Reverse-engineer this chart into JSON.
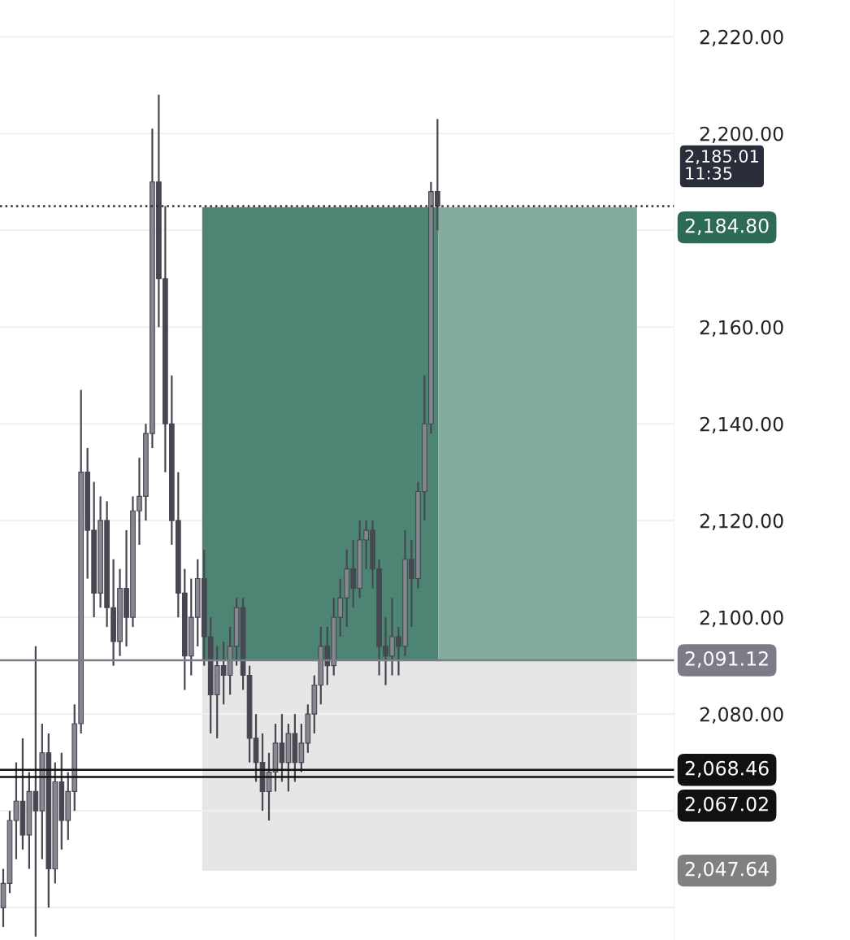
{
  "chart_data": {
    "type": "candlestick",
    "categories": [
      null,
      null,
      null,
      null,
      null,
      null,
      null,
      null,
      null,
      null,
      null,
      null,
      null,
      null,
      null,
      null,
      null,
      null,
      null,
      null,
      null,
      null,
      null,
      null,
      null,
      null,
      null,
      null,
      null,
      null,
      null,
      null,
      null,
      null,
      null,
      null,
      null,
      null,
      null,
      null,
      null,
      null,
      null,
      null,
      null,
      null,
      null,
      null,
      null,
      null,
      null,
      null,
      null,
      null,
      null,
      null,
      null,
      null,
      null,
      null,
      null,
      null,
      null,
      null,
      null,
      null,
      null,
      null,
      null,
      null,
      null,
      null,
      null,
      null,
      null,
      null,
      null,
      null,
      null,
      null,
      null,
      null,
      null,
      null,
      null,
      null,
      null,
      null,
      null,
      null,
      null,
      null,
      null,
      null,
      null,
      null,
      null,
      null,
      null,
      null,
      null,
      null,
      null,
      null
    ],
    "series": [
      {
        "color": "#474752",
        "ohlc": [
          [
            2040,
            2048,
            2036,
            2045
          ],
          [
            2045,
            2060,
            2043,
            2058
          ],
          [
            2058,
            2070,
            2050,
            2062
          ],
          [
            2062,
            2075,
            2052,
            2055
          ],
          [
            2055,
            2068,
            2048,
            2064
          ],
          [
            2064,
            2094,
            2034,
            2060
          ],
          [
            2060,
            2078,
            2050,
            2072
          ],
          [
            2072,
            2076,
            2040,
            2048
          ],
          [
            2048,
            2070,
            2045,
            2066
          ],
          [
            2066,
            2072,
            2052,
            2058
          ],
          [
            2058,
            2068,
            2054,
            2064
          ],
          [
            2064,
            2082,
            2060,
            2078
          ],
          [
            2078,
            2147,
            2076,
            2130
          ],
          [
            2130,
            2135,
            2108,
            2118
          ],
          [
            2118,
            2128,
            2100,
            2105
          ],
          [
            2105,
            2125,
            2102,
            2120
          ],
          [
            2120,
            2124,
            2098,
            2102
          ],
          [
            2102,
            2112,
            2090,
            2095
          ],
          [
            2095,
            2110,
            2092,
            2106
          ],
          [
            2106,
            2118,
            2094,
            2100
          ],
          [
            2100,
            2125,
            2098,
            2122
          ],
          [
            2122,
            2133,
            2115,
            2125
          ],
          [
            2125,
            2140,
            2120,
            2138
          ],
          [
            2138,
            2201,
            2135,
            2190
          ],
          [
            2190,
            2208,
            2160,
            2170
          ],
          [
            2170,
            2185,
            2130,
            2140
          ],
          [
            2140,
            2150,
            2115,
            2120
          ],
          [
            2120,
            2130,
            2100,
            2105
          ],
          [
            2105,
            2110,
            2085,
            2092
          ],
          [
            2092,
            2108,
            2088,
            2100
          ],
          [
            2100,
            2112,
            2094,
            2108
          ],
          [
            2108,
            2114,
            2090,
            2096
          ],
          [
            2096,
            2100,
            2076,
            2084
          ],
          [
            2084,
            2094,
            2075,
            2090
          ],
          [
            2090,
            2095,
            2082,
            2088
          ],
          [
            2088,
            2098,
            2084,
            2094
          ],
          [
            2094,
            2104,
            2090,
            2102
          ],
          [
            2102,
            2104,
            2085,
            2088
          ],
          [
            2088,
            2090,
            2070,
            2075
          ],
          [
            2075,
            2080,
            2066,
            2070
          ],
          [
            2070,
            2076,
            2060,
            2064
          ],
          [
            2064,
            2072,
            2058,
            2068
          ],
          [
            2068,
            2078,
            2064,
            2074
          ],
          [
            2074,
            2080,
            2066,
            2070
          ],
          [
            2070,
            2078,
            2064,
            2076
          ],
          [
            2076,
            2080,
            2066,
            2070
          ],
          [
            2070,
            2078,
            2068,
            2074
          ],
          [
            2074,
            2082,
            2072,
            2080
          ],
          [
            2080,
            2088,
            2076,
            2086
          ],
          [
            2086,
            2098,
            2082,
            2094
          ],
          [
            2094,
            2098,
            2086,
            2090
          ],
          [
            2090,
            2104,
            2088,
            2100
          ],
          [
            2100,
            2108,
            2096,
            2104
          ],
          [
            2104,
            2114,
            2098,
            2110
          ],
          [
            2110,
            2116,
            2102,
            2106
          ],
          [
            2106,
            2120,
            2104,
            2116
          ],
          [
            2116,
            2120,
            2110,
            2118
          ],
          [
            2118,
            2120,
            2106,
            2110
          ],
          [
            2110,
            2112,
            2088,
            2094
          ],
          [
            2094,
            2100,
            2086,
            2092
          ],
          [
            2092,
            2104,
            2088,
            2096
          ],
          [
            2096,
            2098,
            2088,
            2094
          ],
          [
            2094,
            2118,
            2092,
            2112
          ],
          [
            2112,
            2116,
            2098,
            2108
          ],
          [
            2108,
            2128,
            2106,
            2126
          ],
          [
            2126,
            2150,
            2120,
            2140
          ],
          [
            2140,
            2190,
            2138,
            2188
          ],
          [
            2188,
            2203,
            2180,
            2185.01
          ],
          null,
          null,
          null,
          null,
          null,
          null,
          null,
          null,
          null,
          null,
          null,
          null,
          null,
          null,
          null,
          null,
          null,
          null,
          null,
          null,
          null,
          null,
          null,
          null,
          null,
          null,
          null,
          null,
          null,
          null,
          null,
          null,
          null,
          null,
          null,
          null
        ]
      }
    ],
    "ylim": [
      2033.3,
      2227.6
    ],
    "yticks": [
      {
        "value": 2040,
        "label": null
      },
      {
        "value": 2060,
        "label": null
      },
      {
        "value": 2080,
        "label": "2,080.00"
      },
      {
        "value": 2100,
        "label": "2,100.00"
      },
      {
        "value": 2120,
        "label": "2,120.00"
      },
      {
        "value": 2140,
        "label": "2,140.00"
      },
      {
        "value": 2160,
        "label": "2,160.00"
      },
      {
        "value": 2180,
        "label": null
      },
      {
        "value": 2200,
        "label": "2,200.00"
      },
      {
        "value": 2220,
        "label": "2,220.00"
      }
    ],
    "grid": "y",
    "tick_labels": "y",
    "bands": [
      {
        "axis": "y",
        "from": 2091.12,
        "to": 2184.8,
        "color": "#4e8474"
      },
      {
        "axis": "y",
        "from": 2091.12,
        "to": 2184.8,
        "label": "2,184.80",
        "color": "#85ab9f"
      },
      {
        "axis": "y",
        "from": 2047.64,
        "to": 2091.12,
        "label": "2,047.64",
        "color": "#e6e6e6"
      }
    ],
    "ref_lines": [
      {
        "axis": "y",
        "value": 2185.01,
        "label": "2,185.01\n11:35",
        "color": "#2a2d3a",
        "line_style": "dotted"
      },
      {
        "axis": "y",
        "value": 2091.12,
        "label": "2,091.12",
        "color": "#7b7c88",
        "line_style": "solid"
      },
      {
        "axis": "y",
        "value": 2068.46,
        "label": "2,068.46",
        "color": "#111111",
        "line_style": "solid"
      },
      {
        "axis": "y",
        "value": 2067.02,
        "label": "2,067.02",
        "color": "#111111",
        "line_style": "solid"
      }
    ]
  }
}
